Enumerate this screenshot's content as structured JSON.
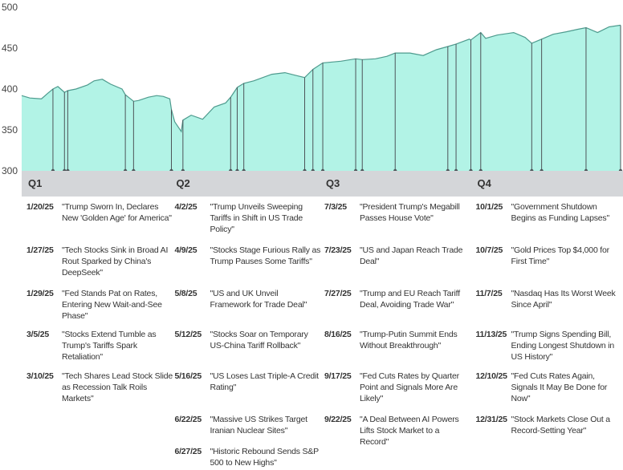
{
  "chart_data": {
    "type": "area",
    "yticks": [
      300,
      350,
      400,
      450,
      500
    ],
    "ylim": [
      300,
      500
    ],
    "xlim": [
      "2025-01-01",
      "2025-12-31"
    ],
    "colors": {
      "fill": "#b2f3e6",
      "line": "#4e9b8e",
      "marker": "#4d5459"
    },
    "x": [
      "2025-01-01",
      "2025-01-06",
      "2025-01-13",
      "2025-01-17",
      "2025-01-20",
      "2025-01-23",
      "2025-01-27",
      "2025-01-29",
      "2025-02-03",
      "2025-02-10",
      "2025-02-14",
      "2025-02-19",
      "2025-02-24",
      "2025-03-03",
      "2025-03-05",
      "2025-03-10",
      "2025-03-13",
      "2025-03-19",
      "2025-03-24",
      "2025-03-28",
      "2025-04-01",
      "2025-04-02",
      "2025-04-04",
      "2025-04-08",
      "2025-04-09",
      "2025-04-14",
      "2025-04-21",
      "2025-04-28",
      "2025-05-05",
      "2025-05-08",
      "2025-05-12",
      "2025-05-16",
      "2025-05-22",
      "2025-06-02",
      "2025-06-10",
      "2025-06-16",
      "2025-06-22",
      "2025-06-27",
      "2025-07-03",
      "2025-07-14",
      "2025-07-23",
      "2025-07-27",
      "2025-08-04",
      "2025-08-11",
      "2025-08-16",
      "2025-08-25",
      "2025-09-02",
      "2025-09-10",
      "2025-09-17",
      "2025-09-22",
      "2025-09-30",
      "2025-10-01",
      "2025-10-07",
      "2025-10-10",
      "2025-10-17",
      "2025-10-27",
      "2025-11-03",
      "2025-11-07",
      "2025-11-13",
      "2025-11-20",
      "2025-11-28",
      "2025-12-05",
      "2025-12-10",
      "2025-12-17",
      "2025-12-24",
      "2025-12-31"
    ],
    "y": [
      392,
      389,
      388,
      395,
      400,
      403,
      396,
      398,
      400,
      405,
      410,
      412,
      406,
      400,
      393,
      385,
      386,
      390,
      392,
      391,
      388,
      375,
      360,
      348,
      362,
      368,
      363,
      378,
      383,
      390,
      402,
      407,
      410,
      418,
      420,
      417,
      414,
      424,
      432,
      434,
      437,
      436,
      437,
      440,
      444,
      444,
      441,
      448,
      452,
      455,
      461,
      460,
      469,
      462,
      466,
      469,
      463,
      456,
      461,
      467,
      470,
      473,
      475,
      469,
      476,
      478
    ],
    "events": [
      {
        "quarter": "Q1",
        "date": "1/20/25",
        "x": "2025-01-20",
        "headline": "\"Trump Sworn In, Declares New 'Golden Age' for America\""
      },
      {
        "quarter": "Q1",
        "date": "1/27/25",
        "x": "2025-01-27",
        "headline": "\"Tech Stocks Sink in Broad AI Rout Sparked by China's DeepSeek\""
      },
      {
        "quarter": "Q1",
        "date": "1/29/25",
        "x": "2025-01-29",
        "headline": "\"Fed Stands Pat on Rates, Entering New Wait-and-See Phase\""
      },
      {
        "quarter": "Q1",
        "date": "3/5/25",
        "x": "2025-03-05",
        "headline": "\"Stocks Extend Tumble as Trump's Tariffs Spark Retaliation\""
      },
      {
        "quarter": "Q1",
        "date": "3/10/25",
        "x": "2025-03-10",
        "headline": "\"Tech Shares Lead Stock Slide as Recession Talk Roils Markets\""
      },
      {
        "quarter": "Q2",
        "date": "4/2/25",
        "x": "2025-04-02",
        "headline": "\"Trump Unveils Sweeping Tariffs in Shift in US Trade Policy\""
      },
      {
        "quarter": "Q2",
        "date": "4/9/25",
        "x": "2025-04-09",
        "headline": "\"Stocks Stage Furious Rally as Trump Pauses Some Tariffs\""
      },
      {
        "quarter": "Q2",
        "date": "5/8/25",
        "x": "2025-05-08",
        "headline": "\"US and UK Unveil Framework for Trade Deal\""
      },
      {
        "quarter": "Q2",
        "date": "5/12/25",
        "x": "2025-05-12",
        "headline": "\"Stocks Soar on Temporary US-China Tariff Rollback\""
      },
      {
        "quarter": "Q2",
        "date": "5/16/25",
        "x": "2025-05-16",
        "headline": "\"US Loses Last Triple-A Credit Rating\""
      },
      {
        "quarter": "Q2",
        "date": "6/22/25",
        "x": "2025-06-22",
        "headline": "\"Massive US Strikes Target Iranian Nuclear Sites\""
      },
      {
        "quarter": "Q2",
        "date": "6/27/25",
        "x": "2025-06-27",
        "headline": "\"Historic Rebound Sends S&P 500 to New Highs\""
      },
      {
        "quarter": "Q3",
        "date": "7/3/25",
        "x": "2025-07-03",
        "headline": "\"President Trump's Megabill Passes House Vote\""
      },
      {
        "quarter": "Q3",
        "date": "7/23/25",
        "x": "2025-07-23",
        "headline": "\"US and Japan Reach Trade Deal\""
      },
      {
        "quarter": "Q3",
        "date": "7/27/25",
        "x": "2025-07-27",
        "headline": "\"Trump and EU Reach Tariff Deal, Avoiding Trade War\""
      },
      {
        "quarter": "Q3",
        "date": "8/16/25",
        "x": "2025-08-16",
        "headline": "\"Trump-Putin Summit Ends Without Breakthrough\""
      },
      {
        "quarter": "Q3",
        "date": "9/17/25",
        "x": "2025-09-17",
        "headline": "\"Fed Cuts Rates by Quarter Point and Signals More Are Likely\""
      },
      {
        "quarter": "Q3",
        "date": "9/22/25",
        "x": "2025-09-22",
        "headline": "\"A Deal Between AI Powers Lifts Stock Market to a Record\""
      },
      {
        "quarter": "Q4",
        "date": "10/1/25",
        "x": "2025-10-01",
        "headline": "\"Government Shutdown Begins as Funding Lapses\""
      },
      {
        "quarter": "Q4",
        "date": "10/7/25",
        "x": "2025-10-07",
        "headline": "\"Gold Prices Top $4,000 for First Time\""
      },
      {
        "quarter": "Q4",
        "date": "11/7/25",
        "x": "2025-11-07",
        "headline": "\"Nasdaq Has Its Worst Week Since April\""
      },
      {
        "quarter": "Q4",
        "date": "11/13/25",
        "x": "2025-11-13",
        "headline": "\"Trump Signs Spending Bill, Ending Longest Shutdown in US History\""
      },
      {
        "quarter": "Q4",
        "date": "12/10/25",
        "x": "2025-12-10",
        "headline": "\"Fed Cuts Rates Again, Signals It May Be Done for Now\""
      },
      {
        "quarter": "Q4",
        "date": "12/31/25",
        "x": "2025-12-31",
        "headline": "\"Stock Markets Close Out a Record-Setting Year\""
      }
    ]
  },
  "quarters": [
    {
      "label": "Q1",
      "start": "2025-01-01"
    },
    {
      "label": "Q2",
      "start": "2025-04-01"
    },
    {
      "label": "Q3",
      "start": "2025-07-01"
    },
    {
      "label": "Q4",
      "start": "2025-10-01"
    }
  ]
}
